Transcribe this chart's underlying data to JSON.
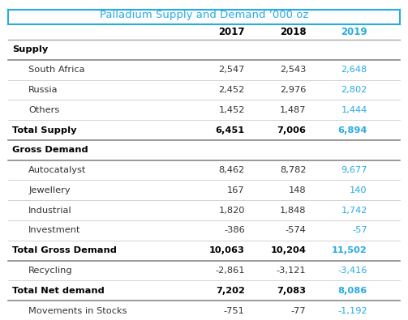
{
  "title": "Palladium Supply and Demand ’000 oz",
  "title_color": "#29ABE2",
  "columns": [
    "",
    "2017",
    "2018",
    "2019"
  ],
  "col_colors": [
    "#000000",
    "#000000",
    "#000000",
    "#29ABE2"
  ],
  "rows": [
    {
      "label": "Supply",
      "values": [
        "",
        "",
        ""
      ],
      "bold": true,
      "indent": false,
      "separator_above": true,
      "separator_below": true
    },
    {
      "label": "South Africa",
      "values": [
        "2,547",
        "2,543",
        "2,648"
      ],
      "bold": false,
      "indent": true,
      "separator_above": false,
      "separator_below": true
    },
    {
      "label": "Russia",
      "values": [
        "2,452",
        "2,976",
        "2,802"
      ],
      "bold": false,
      "indent": true,
      "separator_above": false,
      "separator_below": true
    },
    {
      "label": "Others",
      "values": [
        "1,452",
        "1,487",
        "1,444"
      ],
      "bold": false,
      "indent": true,
      "separator_above": false,
      "separator_below": true
    },
    {
      "label": "Total Supply",
      "values": [
        "6,451",
        "7,006",
        "6,894"
      ],
      "bold": true,
      "indent": false,
      "separator_above": false,
      "separator_below": true
    },
    {
      "label": "Gross Demand",
      "values": [
        "",
        "",
        ""
      ],
      "bold": true,
      "indent": false,
      "separator_above": false,
      "separator_below": true
    },
    {
      "label": "Autocatalyst",
      "values": [
        "8,462",
        "8,782",
        "9,677"
      ],
      "bold": false,
      "indent": true,
      "separator_above": false,
      "separator_below": true
    },
    {
      "label": "Jewellery",
      "values": [
        "167",
        "148",
        "140"
      ],
      "bold": false,
      "indent": true,
      "separator_above": false,
      "separator_below": true
    },
    {
      "label": "Industrial",
      "values": [
        "1,820",
        "1,848",
        "1,742"
      ],
      "bold": false,
      "indent": true,
      "separator_above": false,
      "separator_below": true
    },
    {
      "label": "Investment",
      "values": [
        "-386",
        "-574",
        "-57"
      ],
      "bold": false,
      "indent": true,
      "separator_above": false,
      "separator_below": true
    },
    {
      "label": "Total Gross Demand",
      "values": [
        "10,063",
        "10,204",
        "11,502"
      ],
      "bold": true,
      "indent": false,
      "separator_above": false,
      "separator_below": true
    },
    {
      "label": "Recycling",
      "values": [
        "-2,861",
        "-3,121",
        "-3,416"
      ],
      "bold": false,
      "indent": true,
      "separator_above": false,
      "separator_below": true
    },
    {
      "label": "Total Net demand",
      "values": [
        "7,202",
        "7,083",
        "8,086"
      ],
      "bold": true,
      "indent": false,
      "separator_above": false,
      "separator_below": true
    },
    {
      "label": "Movements in Stocks",
      "values": [
        "-751",
        "-77",
        "-1,192"
      ],
      "bold": false,
      "indent": true,
      "separator_above": false,
      "separator_below": false
    }
  ],
  "bg_color": "#ffffff",
  "header_line_color": "#29ABE2",
  "separator_color": "#cccccc",
  "text_color": "#333333",
  "cyan_color": "#29ABE2",
  "bold_color": "#000000"
}
